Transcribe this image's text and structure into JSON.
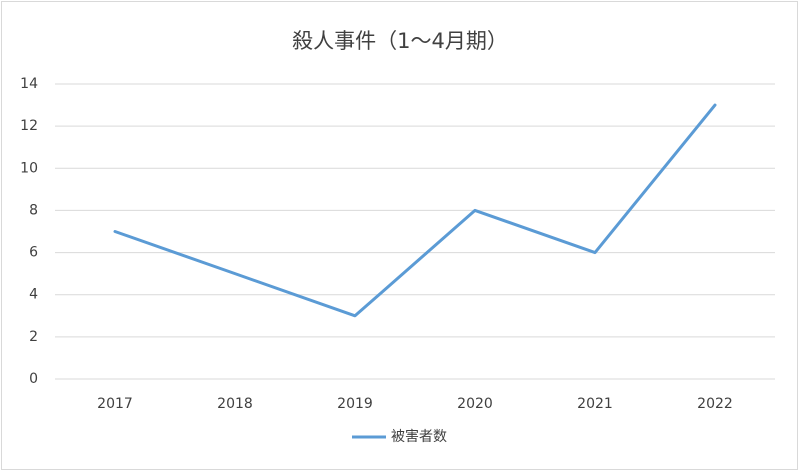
{
  "chart_data": {
    "type": "line",
    "title": "殺人事件（1～4月期）",
    "categories": [
      "2017",
      "2018",
      "2019",
      "2020",
      "2021",
      "2022"
    ],
    "series": [
      {
        "name": "被害者数",
        "color": "#5b9bd5",
        "values": [
          7,
          5,
          3,
          8,
          6,
          13
        ]
      }
    ],
    "ylim": [
      0,
      14
    ],
    "yticks": [
      0,
      2,
      4,
      6,
      8,
      10,
      12,
      14
    ],
    "grid": true,
    "legend": "bottom"
  }
}
